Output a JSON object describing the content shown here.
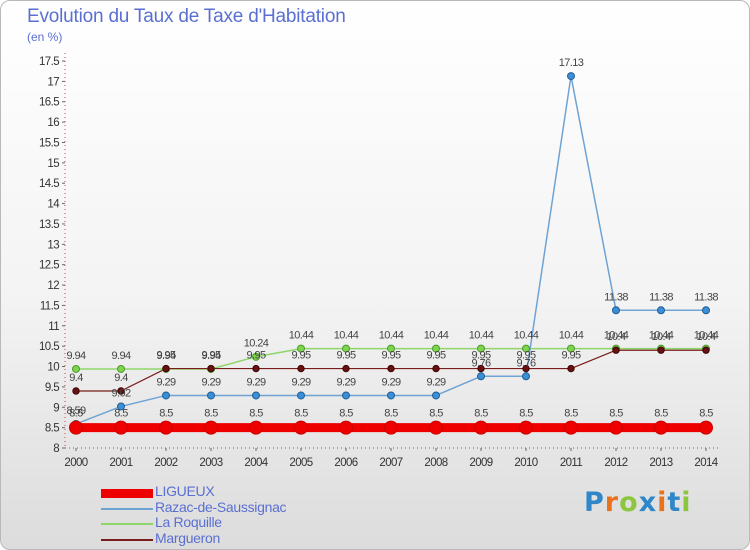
{
  "header": {
    "title": "Evolution du Taux de Taxe d'Habitation",
    "subtitle": "(en %)"
  },
  "brand": {
    "text": "Proxiti",
    "letter_colors": [
      "#2f86c8",
      "#e8731c",
      "#8cc63e",
      "#2f86c8",
      "#e8731c",
      "#2f86c8",
      "#8cc63e"
    ]
  },
  "chart_data": {
    "type": "line",
    "title": "Evolution du Taux de Taxe d'Habitation",
    "subtitle": "(en %)",
    "x": [
      "2000",
      "2001",
      "2002",
      "2003",
      "2004",
      "2005",
      "2006",
      "2007",
      "2008",
      "2009",
      "2010",
      "2011",
      "2012",
      "2013",
      "2014"
    ],
    "yticks": [
      "8",
      "8.5",
      "9",
      "9.5",
      "10",
      "10.5",
      "11",
      "11.5",
      "12",
      "12.5",
      "13",
      "13.5",
      "14",
      "14.5",
      "15",
      "15.5",
      "16",
      "16.5",
      "17",
      "17.5"
    ],
    "ylim": [
      8,
      17.5
    ],
    "grid": false,
    "legend_position": "bottom-left",
    "series": [
      {
        "name": "LIGUEUX",
        "color": "#ee0000",
        "values": [
          8.5,
          8.5,
          8.5,
          8.5,
          8.5,
          8.5,
          8.5,
          8.5,
          8.5,
          8.5,
          8.5,
          8.5,
          8.5,
          8.5,
          8.5
        ],
        "labels": [
          "8.5",
          "8.5",
          "8.5",
          "8.5",
          "8.5",
          "8.5",
          "8.5",
          "8.5",
          "8.5",
          "8.5",
          "8.5",
          "8.5",
          "8.5",
          "8.5",
          "8.5"
        ]
      },
      {
        "name": "Razac-de-Saussignac",
        "color": "#6fa3d4",
        "values": [
          8.59,
          9.02,
          9.29,
          9.29,
          9.29,
          9.29,
          9.29,
          9.29,
          9.29,
          9.76,
          9.76,
          17.13,
          11.38,
          11.38,
          11.38
        ],
        "labels": [
          "8.59",
          "9.02",
          "9.29",
          "9.29",
          "9.29",
          "9.29",
          "9.29",
          "9.29",
          "9.29",
          "9.76",
          "9.76",
          "17.13",
          "11.38",
          "11.38",
          "11.38"
        ]
      },
      {
        "name": "La Roquille",
        "color": "#8fd66a",
        "values": [
          9.94,
          9.94,
          9.94,
          9.94,
          10.24,
          10.44,
          10.44,
          10.44,
          10.44,
          10.44,
          10.44,
          10.44,
          10.44,
          10.44,
          10.44
        ],
        "labels": [
          "9.94",
          "9.94",
          "9.94",
          "9.94",
          "10.24",
          "10.44",
          "10.44",
          "10.44",
          "10.44",
          "10.44",
          "10.44",
          "10.44",
          "10.44",
          "10.44",
          "10.44"
        ]
      },
      {
        "name": "Margueron",
        "color": "#7a1c1c",
        "values": [
          9.4,
          9.4,
          9.95,
          9.95,
          9.95,
          9.95,
          9.95,
          9.95,
          9.95,
          9.95,
          9.95,
          9.95,
          10.4,
          10.4,
          10.4
        ],
        "labels": [
          "9.4",
          "9.4",
          "9.95",
          "9.95",
          "9.95",
          "9.95",
          "9.95",
          "9.95",
          "9.95",
          "9.95",
          "9.95",
          "9.95",
          "10.4",
          "10.4",
          "10.4"
        ]
      }
    ]
  }
}
